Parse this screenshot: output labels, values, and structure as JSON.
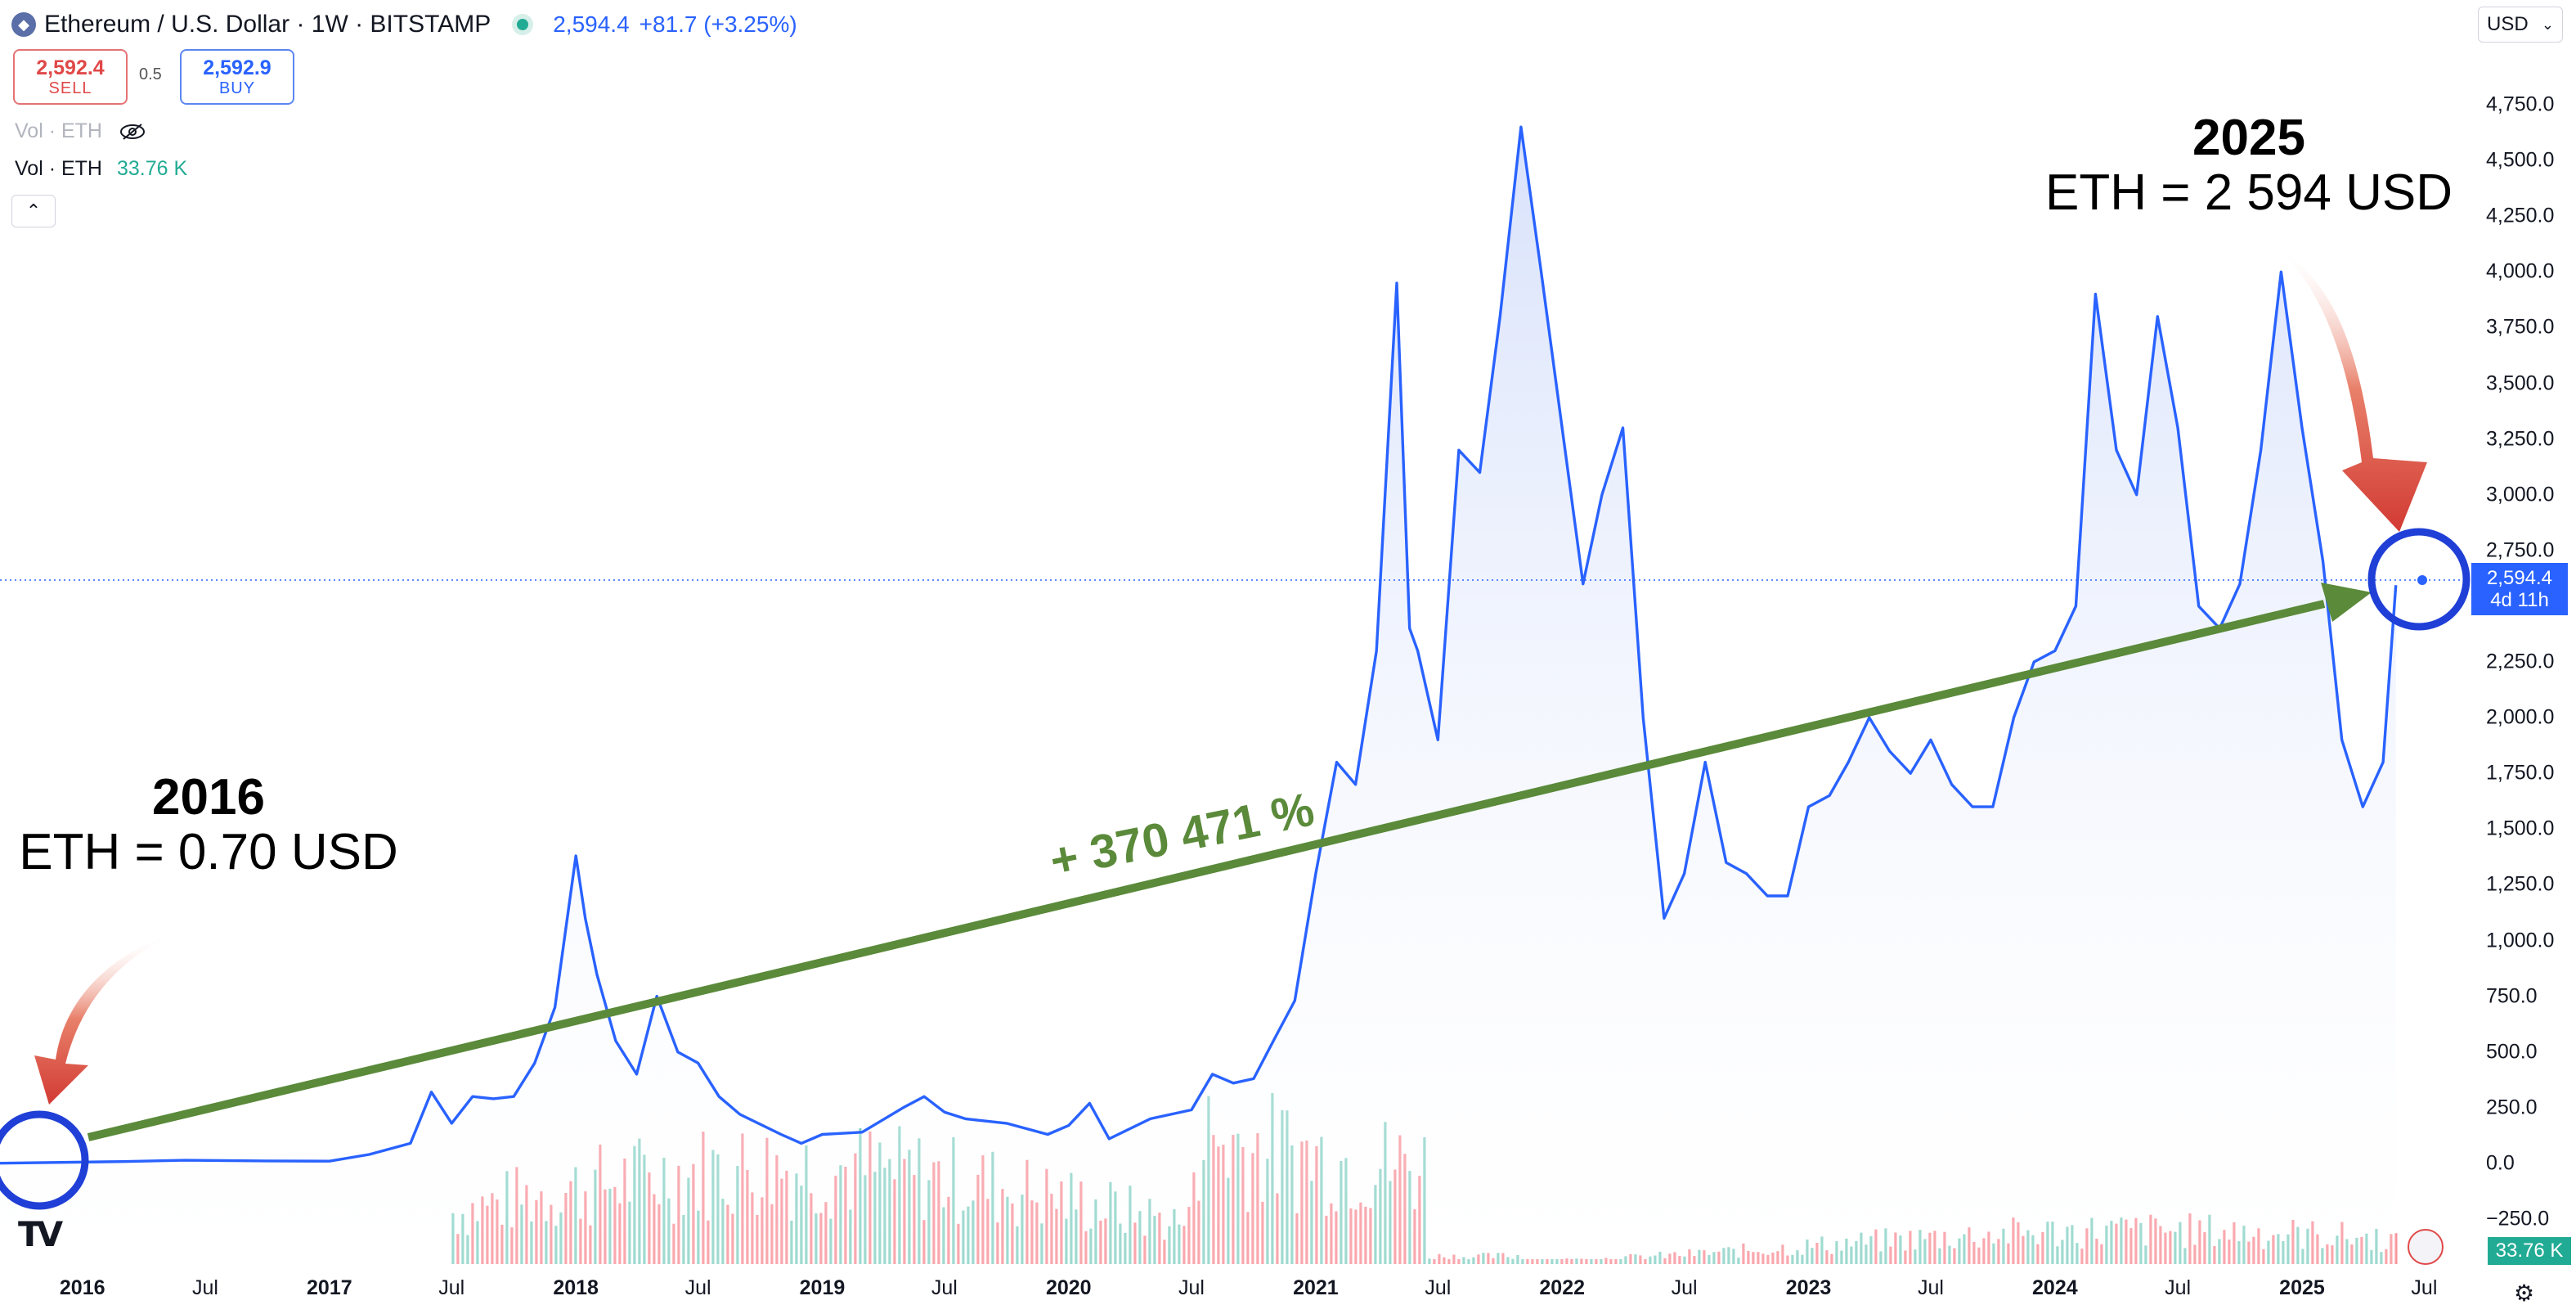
{
  "header": {
    "symbol_label": "Ethereum / U.S. Dollar · 1W · BITSTAMP",
    "last_price": "2,594.4",
    "change": "+81.7 (+3.25%)",
    "coin_icon": "ethereum-icon",
    "status_icon": "market-open-dot-icon"
  },
  "trade": {
    "sell_price": "2,592.4",
    "sell_label": "SELL",
    "spread": "0.5",
    "buy_price": "2,592.9",
    "buy_label": "BUY"
  },
  "legend": {
    "vol_hidden_label": "Vol · ETH",
    "vol_label": "Vol · ETH",
    "vol_value": "33.76 K",
    "hide_icon": "eye-off-icon",
    "collapse_icon": "chevron-up-icon"
  },
  "currency_select": {
    "value": "USD",
    "icon": "chevron-down-icon"
  },
  "price_tag": {
    "price": "2,594.4",
    "countdown": "4d 11h"
  },
  "volume_tag": "33.76 K",
  "annotations": {
    "start_year": "2016",
    "start_text": "ETH =  0.70 USD",
    "end_year": "2025",
    "end_text": "ETH = 2 594 USD",
    "growth": "+ 370 471 %"
  },
  "colors": {
    "line": "#2962ff",
    "area_top": "#d6e0fb",
    "up_volume": "#22ab94",
    "down_volume": "#f23645",
    "trend_arrow": "#5a8a3a",
    "pointer_arrow": "#d9473a",
    "circle": "#1f3fd6"
  },
  "chart_data": {
    "type": "area",
    "title": "Ethereum / U.S. Dollar · 1W · BITSTAMP",
    "y_ticks": [
      "4,750.0",
      "4,500.0",
      "4,250.0",
      "4,000.0",
      "3,750.0",
      "3,500.0",
      "3,250.0",
      "3,000.0",
      "2,750.0",
      "2,500.0",
      "2,250.0",
      "2,000.0",
      "1,750.0",
      "1,500.0",
      "1,250.0",
      "1,000.0",
      "750.0",
      "500.0",
      "250.0",
      "0.0",
      "−250.0"
    ],
    "x_ticks": [
      {
        "label": "2016",
        "year": true,
        "date": "2016-01"
      },
      {
        "label": "Jul",
        "year": false,
        "date": "2016-07"
      },
      {
        "label": "2017",
        "year": true,
        "date": "2017-01"
      },
      {
        "label": "Jul",
        "year": false,
        "date": "2017-07"
      },
      {
        "label": "2018",
        "year": true,
        "date": "2018-01"
      },
      {
        "label": "Jul",
        "year": false,
        "date": "2018-07"
      },
      {
        "label": "2019",
        "year": true,
        "date": "2019-01"
      },
      {
        "label": "Jul",
        "year": false,
        "date": "2019-07"
      },
      {
        "label": "2020",
        "year": true,
        "date": "2020-01"
      },
      {
        "label": "Jul",
        "year": false,
        "date": "2020-07"
      },
      {
        "label": "2021",
        "year": true,
        "date": "2021-01"
      },
      {
        "label": "Jul",
        "year": false,
        "date": "2021-07"
      },
      {
        "label": "2022",
        "year": true,
        "date": "2022-01"
      },
      {
        "label": "Jul",
        "year": false,
        "date": "2022-07"
      },
      {
        "label": "2023",
        "year": true,
        "date": "2023-01"
      },
      {
        "label": "Jul",
        "year": false,
        "date": "2023-07"
      },
      {
        "label": "2024",
        "year": true,
        "date": "2024-01"
      },
      {
        "label": "Jul",
        "year": false,
        "date": "2024-07"
      },
      {
        "label": "2025",
        "year": true,
        "date": "2025-01"
      },
      {
        "label": "Jul",
        "year": false,
        "date": "2025-07"
      }
    ],
    "ylim": [
      -250,
      4750
    ],
    "xlim": [
      "2015-09",
      "2025-08"
    ],
    "grid": false,
    "price_series": [
      [
        "2015-09",
        0.7
      ],
      [
        "2016-03",
        8
      ],
      [
        "2016-06",
        14
      ],
      [
        "2016-10",
        11
      ],
      [
        "2017-01",
        10
      ],
      [
        "2017-03",
        40
      ],
      [
        "2017-05",
        90
      ],
      [
        "2017-06",
        320
      ],
      [
        "2017-07",
        180
      ],
      [
        "2017-08",
        300
      ],
      [
        "2017-09",
        290
      ],
      [
        "2017-10",
        300
      ],
      [
        "2017-11",
        450
      ],
      [
        "2017-12",
        700
      ],
      [
        "2018-01",
        1380
      ],
      [
        "2018-01-15",
        1100
      ],
      [
        "2018-02",
        850
      ],
      [
        "2018-03",
        550
      ],
      [
        "2018-04",
        400
      ],
      [
        "2018-05",
        750
      ],
      [
        "2018-06",
        500
      ],
      [
        "2018-07",
        450
      ],
      [
        "2018-08",
        300
      ],
      [
        "2018-09",
        220
      ],
      [
        "2018-11",
        130
      ],
      [
        "2018-12",
        90
      ],
      [
        "2019-01",
        130
      ],
      [
        "2019-03",
        140
      ],
      [
        "2019-05",
        250
      ],
      [
        "2019-06",
        300
      ],
      [
        "2019-07",
        230
      ],
      [
        "2019-08",
        200
      ],
      [
        "2019-10",
        180
      ],
      [
        "2019-12",
        130
      ],
      [
        "2020-01",
        170
      ],
      [
        "2020-02",
        270
      ],
      [
        "2020-03",
        110
      ],
      [
        "2020-05",
        200
      ],
      [
        "2020-07",
        240
      ],
      [
        "2020-08",
        400
      ],
      [
        "2020-09",
        360
      ],
      [
        "2020-10",
        380
      ],
      [
        "2020-11",
        560
      ],
      [
        "2020-12",
        730
      ],
      [
        "2021-01",
        1300
      ],
      [
        "2021-02",
        1800
      ],
      [
        "2021-03",
        1700
      ],
      [
        "2021-04",
        2300
      ],
      [
        "2021-05",
        3950
      ],
      [
        "2021-05-20",
        2400
      ],
      [
        "2021-06",
        2300
      ],
      [
        "2021-07",
        1900
      ],
      [
        "2021-08",
        3200
      ],
      [
        "2021-09",
        3100
      ],
      [
        "2021-10",
        3800
      ],
      [
        "2021-11",
        4650
      ],
      [
        "2021-12",
        4000
      ],
      [
        "2022-01",
        3300
      ],
      [
        "2022-02",
        2600
      ],
      [
        "2022-03",
        3000
      ],
      [
        "2022-04",
        3300
      ],
      [
        "2022-05",
        2000
      ],
      [
        "2022-06",
        1100
      ],
      [
        "2022-07",
        1300
      ],
      [
        "2022-08",
        1800
      ],
      [
        "2022-09",
        1350
      ],
      [
        "2022-10",
        1300
      ],
      [
        "2022-11",
        1200
      ],
      [
        "2022-12",
        1200
      ],
      [
        "2023-01",
        1600
      ],
      [
        "2023-02",
        1650
      ],
      [
        "2023-03",
        1800
      ],
      [
        "2023-04",
        2000
      ],
      [
        "2023-05",
        1850
      ],
      [
        "2023-06",
        1750
      ],
      [
        "2023-07",
        1900
      ],
      [
        "2023-08",
        1700
      ],
      [
        "2023-09",
        1600
      ],
      [
        "2023-10",
        1600
      ],
      [
        "2023-11",
        2000
      ],
      [
        "2023-12",
        2250
      ],
      [
        "2024-01",
        2300
      ],
      [
        "2024-02",
        2500
      ],
      [
        "2024-03",
        3900
      ],
      [
        "2024-04",
        3200
      ],
      [
        "2024-05",
        3000
      ],
      [
        "2024-06",
        3800
      ],
      [
        "2024-07",
        3300
      ],
      [
        "2024-08",
        2500
      ],
      [
        "2024-09",
        2400
      ],
      [
        "2024-10",
        2600
      ],
      [
        "2024-11",
        3200
      ],
      [
        "2024-12",
        4000
      ],
      [
        "2025-01",
        3300
      ],
      [
        "2025-02",
        2700
      ],
      [
        "2025-03",
        1900
      ],
      [
        "2025-04",
        1600
      ],
      [
        "2025-05",
        1800
      ],
      [
        "2025-05-20",
        2594.4
      ]
    ],
    "last_price": 2594.4,
    "volume_note": "volume histogram in lower pane (green up / red down)"
  }
}
